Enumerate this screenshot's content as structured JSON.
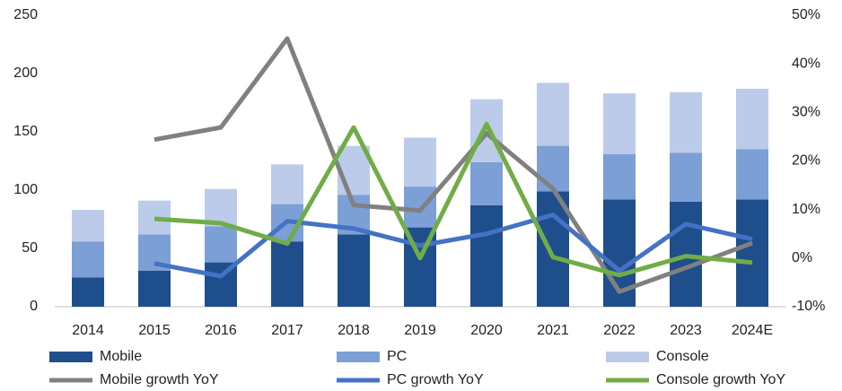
{
  "chart_data": {
    "type": "bar",
    "categories": [
      "2014",
      "2015",
      "2016",
      "2017",
      "2018",
      "2019",
      "2020",
      "2021",
      "2022",
      "2023",
      "2024E"
    ],
    "stacked": true,
    "series": [
      {
        "name": "Mobile",
        "color": "#1f4e8c",
        "values": [
          25,
          31,
          38,
          56,
          62,
          68,
          87,
          99,
          92,
          90,
          92
        ]
      },
      {
        "name": "PC",
        "color": "#7c9fd6",
        "values": [
          31,
          31,
          31,
          32,
          34,
          35,
          37,
          39,
          39,
          42,
          43
        ]
      },
      {
        "name": "Console",
        "color": "#bccbe9",
        "values": [
          27,
          29,
          32,
          34,
          42,
          42,
          54,
          54,
          52,
          52,
          52
        ]
      },
      {
        "name": "Mobile growth YoY",
        "type": "line",
        "axis": "y2",
        "color": "#808080",
        "values": [
          null,
          24.4,
          26.9,
          45.2,
          10.9,
          9.8,
          25.7,
          14.3,
          -6.9,
          -2,
          3.1
        ]
      },
      {
        "name": "PC growth YoY",
        "type": "line",
        "axis": "y2",
        "color": "#4472c4",
        "values": [
          null,
          -1.1,
          -3.7,
          7.6,
          6.1,
          2.6,
          5,
          8.9,
          -2.6,
          7,
          3.9
        ]
      },
      {
        "name": "Console growth YoY",
        "type": "line",
        "axis": "y2",
        "color": "#70ad47",
        "values": [
          null,
          8.1,
          7.2,
          3,
          26.9,
          0,
          27.6,
          0.2,
          -3.5,
          0.4,
          -0.9
        ]
      }
    ],
    "ylim": [
      0,
      250
    ],
    "yticks": [
      0,
      50,
      100,
      150,
      200,
      250
    ],
    "y2lim": [
      -10,
      50
    ],
    "y2ticks": [
      {
        "value": -10,
        "label": "-10%"
      },
      {
        "value": 0,
        "label": "0%"
      },
      {
        "value": 10,
        "label": "10%"
      },
      {
        "value": 20,
        "label": "20%"
      },
      {
        "value": 30,
        "label": "30%"
      },
      {
        "value": 40,
        "label": "40%"
      },
      {
        "value": 50,
        "label": "50%"
      }
    ],
    "grid": false,
    "legend": "bottom"
  }
}
